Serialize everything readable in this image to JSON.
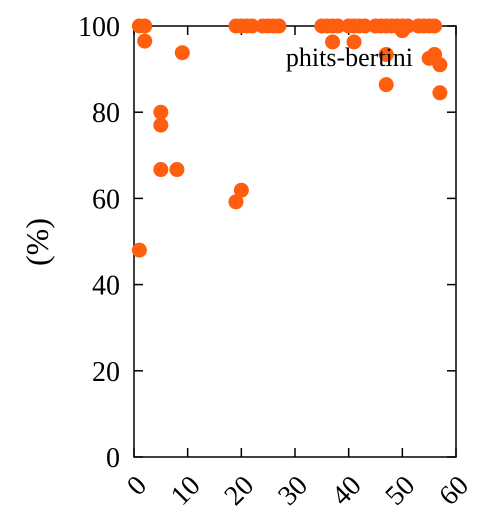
{
  "chart_data": {
    "type": "scatter",
    "xlabel": "",
    "ylabel": "(%)",
    "xlim": [
      0,
      60
    ],
    "ylim": [
      0,
      100
    ],
    "x_ticks": [
      "0",
      "10",
      "20",
      "30",
      "40",
      "50",
      "60"
    ],
    "y_ticks": [
      "0",
      "20",
      "40",
      "60",
      "80",
      "100"
    ],
    "grid": false,
    "legend_position": "top-right",
    "series": [
      {
        "name": "phits-bertini",
        "color": "#FF5E0F",
        "points": [
          [
            1,
            48
          ],
          [
            1,
            100
          ],
          [
            2,
            100
          ],
          [
            2,
            96.5
          ],
          [
            5,
            80
          ],
          [
            5,
            77
          ],
          [
            5,
            66.7
          ],
          [
            8,
            66.7
          ],
          [
            9,
            93.8
          ],
          [
            19,
            59.2
          ],
          [
            20,
            61.9
          ],
          [
            19,
            100
          ],
          [
            20,
            100
          ],
          [
            21,
            100
          ],
          [
            22,
            100
          ],
          [
            24,
            100
          ],
          [
            25,
            100
          ],
          [
            26,
            100
          ],
          [
            27,
            100
          ],
          [
            35,
            100
          ],
          [
            36,
            100
          ],
          [
            37,
            100
          ],
          [
            37,
            96.3
          ],
          [
            38,
            100
          ],
          [
            40,
            100
          ],
          [
            41,
            100
          ],
          [
            41,
            96.3
          ],
          [
            42,
            100
          ],
          [
            43,
            100
          ],
          [
            45,
            100
          ],
          [
            46,
            100
          ],
          [
            47,
            100
          ],
          [
            47,
            93.4
          ],
          [
            47,
            86.4
          ],
          [
            48,
            100
          ],
          [
            49,
            100
          ],
          [
            50,
            100
          ],
          [
            50,
            98.9
          ],
          [
            51,
            100
          ],
          [
            53,
            100
          ],
          [
            54,
            100
          ],
          [
            55,
            100
          ],
          [
            55,
            92.5
          ],
          [
            56,
            93.4
          ],
          [
            56,
            100
          ],
          [
            57,
            91
          ],
          [
            57,
            84.5
          ]
        ]
      }
    ]
  }
}
